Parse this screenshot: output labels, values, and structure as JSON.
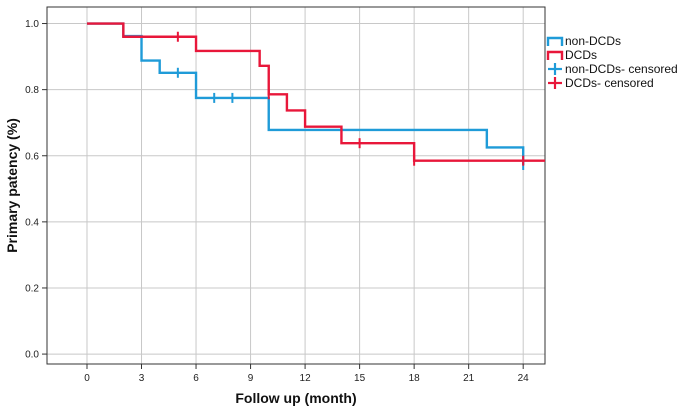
{
  "chart_data": {
    "type": "line",
    "subtype": "kaplan-meier step",
    "xlabel": "Follow up (month)",
    "ylabel": "Primary patency (%)",
    "xlim": [
      -2.2,
      25.2
    ],
    "ylim": [
      -0.03,
      1.05
    ],
    "x_ticks": [
      0,
      3,
      6,
      9,
      12,
      15,
      18,
      21,
      24
    ],
    "y_ticks": [
      0.0,
      0.2,
      0.4,
      0.6,
      0.8,
      1.0
    ],
    "y_tick_labels": [
      "0.0",
      "0.2",
      "0.4",
      "0.6",
      "0.8",
      "1.0"
    ],
    "grid": true,
    "legend_position": "top-right",
    "series": [
      {
        "name": "non-DCDs",
        "color": "#1f9bd8",
        "steps": [
          [
            0,
            1.0
          ],
          [
            2,
            0.962
          ],
          [
            3,
            0.888
          ],
          [
            4,
            0.851
          ],
          [
            6,
            0.775
          ],
          [
            10,
            0.678
          ],
          [
            14,
            0.678
          ],
          [
            22,
            0.625
          ],
          [
            24,
            0.572
          ]
        ]
      },
      {
        "name": "DCDs",
        "color": "#e8173a",
        "steps": [
          [
            0,
            1.0
          ],
          [
            2,
            0.96
          ],
          [
            6,
            0.917
          ],
          [
            9.5,
            0.872
          ],
          [
            10,
            0.786
          ],
          [
            11,
            0.737
          ],
          [
            12,
            0.688
          ],
          [
            14,
            0.638
          ],
          [
            18,
            0.585
          ],
          [
            25.2,
            0.585
          ]
        ]
      }
    ],
    "censored": [
      {
        "name": "non-DCDs- censored",
        "color": "#1f9bd8",
        "points": [
          [
            5,
            0.851
          ],
          [
            7,
            0.775
          ],
          [
            8,
            0.775
          ],
          [
            24,
            0.572
          ]
        ]
      },
      {
        "name": "DCDs- censored",
        "color": "#e8173a",
        "points": [
          [
            5,
            0.96
          ],
          [
            10,
            0.786
          ],
          [
            15,
            0.638
          ],
          [
            18,
            0.585
          ],
          [
            24,
            0.585
          ]
        ]
      }
    ]
  },
  "legend": {
    "items": [
      {
        "label": "non-DCDs",
        "kind": "line",
        "color": "#1f9bd8"
      },
      {
        "label": "DCDs",
        "kind": "line",
        "color": "#e8173a"
      },
      {
        "label": "non-DCDs- censored",
        "kind": "cross",
        "color": "#1f9bd8"
      },
      {
        "label": "DCDs- censored",
        "kind": "cross",
        "color": "#e8173a"
      }
    ]
  }
}
